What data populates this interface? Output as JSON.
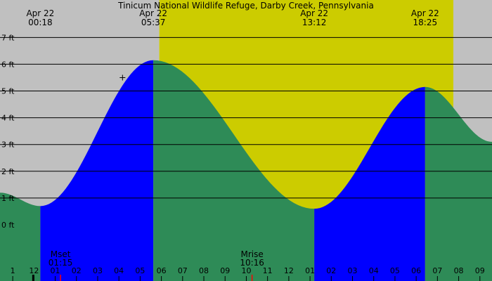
{
  "chart_data": {
    "type": "area",
    "title": "Tinicum National Wildlife Refuge, Darby Creek, Pennsylvania",
    "xlim": [
      -1.6,
      21.57
    ],
    "ylim": [
      -2.1,
      8.4
    ],
    "y_ticks": [
      {
        "value": 0,
        "label": "0 ft"
      },
      {
        "value": 1,
        "label": "1 ft"
      },
      {
        "value": 2,
        "label": "2 ft"
      },
      {
        "value": 3,
        "label": "3 ft"
      },
      {
        "value": 4,
        "label": "4 ft"
      },
      {
        "value": 5,
        "label": "5 ft"
      },
      {
        "value": 6,
        "label": "6 ft"
      },
      {
        "value": 7,
        "label": "7 ft"
      }
    ],
    "x_ticks": [
      {
        "value": -1,
        "label": "1"
      },
      {
        "value": 0,
        "label": "12"
      },
      {
        "value": 1,
        "label": "01"
      },
      {
        "value": 2,
        "label": "02"
      },
      {
        "value": 3,
        "label": "03"
      },
      {
        "value": 4,
        "label": "04"
      },
      {
        "value": 5,
        "label": "05"
      },
      {
        "value": 6,
        "label": "06"
      },
      {
        "value": 7,
        "label": "07"
      },
      {
        "value": 8,
        "label": "08"
      },
      {
        "value": 9,
        "label": "09"
      },
      {
        "value": 10,
        "label": "10"
      },
      {
        "value": 11,
        "label": "11"
      },
      {
        "value": 12,
        "label": "12"
      },
      {
        "value": 13,
        "label": "01"
      },
      {
        "value": 14,
        "label": "02"
      },
      {
        "value": 15,
        "label": "03"
      },
      {
        "value": 16,
        "label": "04"
      },
      {
        "value": 17,
        "label": "05"
      },
      {
        "value": 18,
        "label": "06"
      },
      {
        "value": 19,
        "label": "07"
      },
      {
        "value": 20,
        "label": "08"
      },
      {
        "value": 21,
        "label": "09"
      }
    ],
    "tide_events": [
      {
        "type": "low",
        "date": "Apr 22",
        "time": "00:18",
        "hour": 0.3,
        "height_ft": 0.7
      },
      {
        "type": "high",
        "date": "Apr 22",
        "time": "05:37",
        "hour": 5.62,
        "height_ft": 6.15
      },
      {
        "type": "low",
        "date": "Apr 22",
        "time": "13:12",
        "hour": 13.2,
        "height_ft": 0.6
      },
      {
        "type": "high",
        "date": "Apr 22",
        "time": "18:25",
        "hour": 18.42,
        "height_ft": 5.15
      }
    ],
    "curve_ends": {
      "start_height_ft": 1.2,
      "end_height_ft": 3.1
    },
    "daylight": {
      "start_hour": 5.9,
      "end_hour": 19.75
    },
    "moon_events": [
      {
        "label": "Mset",
        "time": "01:15",
        "hour": 1.25
      },
      {
        "label": "Mrise",
        "time": "10:16",
        "hour": 10.27
      }
    ],
    "marker_hour": -0.05,
    "current_marker": {
      "hour": 4.17,
      "height_ft": 5.5
    },
    "colors": {
      "night": "#c0c0c0",
      "day": "#cccc00",
      "rising": "#0000ff",
      "falling": "#2e8b57",
      "grid": "#000000",
      "text": "#000000",
      "moon_tick": "#ff0000"
    }
  }
}
